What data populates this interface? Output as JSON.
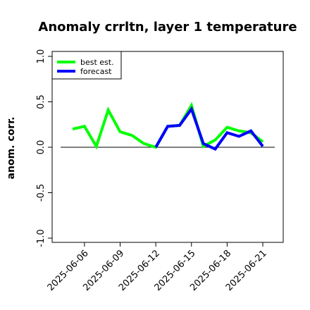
{
  "chart_data": {
    "type": "line",
    "title": "Anomaly crrltn, layer 1 temperature",
    "xlabel": "",
    "ylabel": "anom. corr.",
    "ylim": [
      -1.0,
      1.0
    ],
    "yticks": [
      "-1.0",
      "-0.5",
      "0.0",
      "0.5",
      "1.0"
    ],
    "x": [
      "2025-06-05",
      "2025-06-06",
      "2025-06-07",
      "2025-06-08",
      "2025-06-09",
      "2025-06-10",
      "2025-06-11",
      "2025-06-12",
      "2025-06-13",
      "2025-06-14",
      "2025-06-15",
      "2025-06-16",
      "2025-06-17",
      "2025-06-18",
      "2025-06-19",
      "2025-06-20",
      "2025-06-21"
    ],
    "xticks": [
      "2025-06-06",
      "2025-06-09",
      "2025-06-12",
      "2025-06-15",
      "2025-06-18",
      "2025-06-21"
    ],
    "highlight_tick": "2025-06-12",
    "highlight_color": "#228B22",
    "reference_line": 0.0,
    "grid": false,
    "legend_position": "top-left",
    "series": [
      {
        "name": "best est.",
        "color": "#00ff00",
        "values": [
          0.2,
          0.23,
          0.01,
          0.41,
          0.17,
          0.13,
          0.04,
          0.0,
          0.23,
          0.24,
          0.46,
          0.01,
          0.08,
          0.22,
          0.18,
          0.16,
          0.06
        ]
      },
      {
        "name": "forecast",
        "color": "#0000ff",
        "values": [
          null,
          null,
          null,
          null,
          null,
          null,
          null,
          0.0,
          0.23,
          0.24,
          0.42,
          0.04,
          -0.02,
          0.16,
          0.12,
          0.18,
          0.01
        ]
      }
    ]
  }
}
